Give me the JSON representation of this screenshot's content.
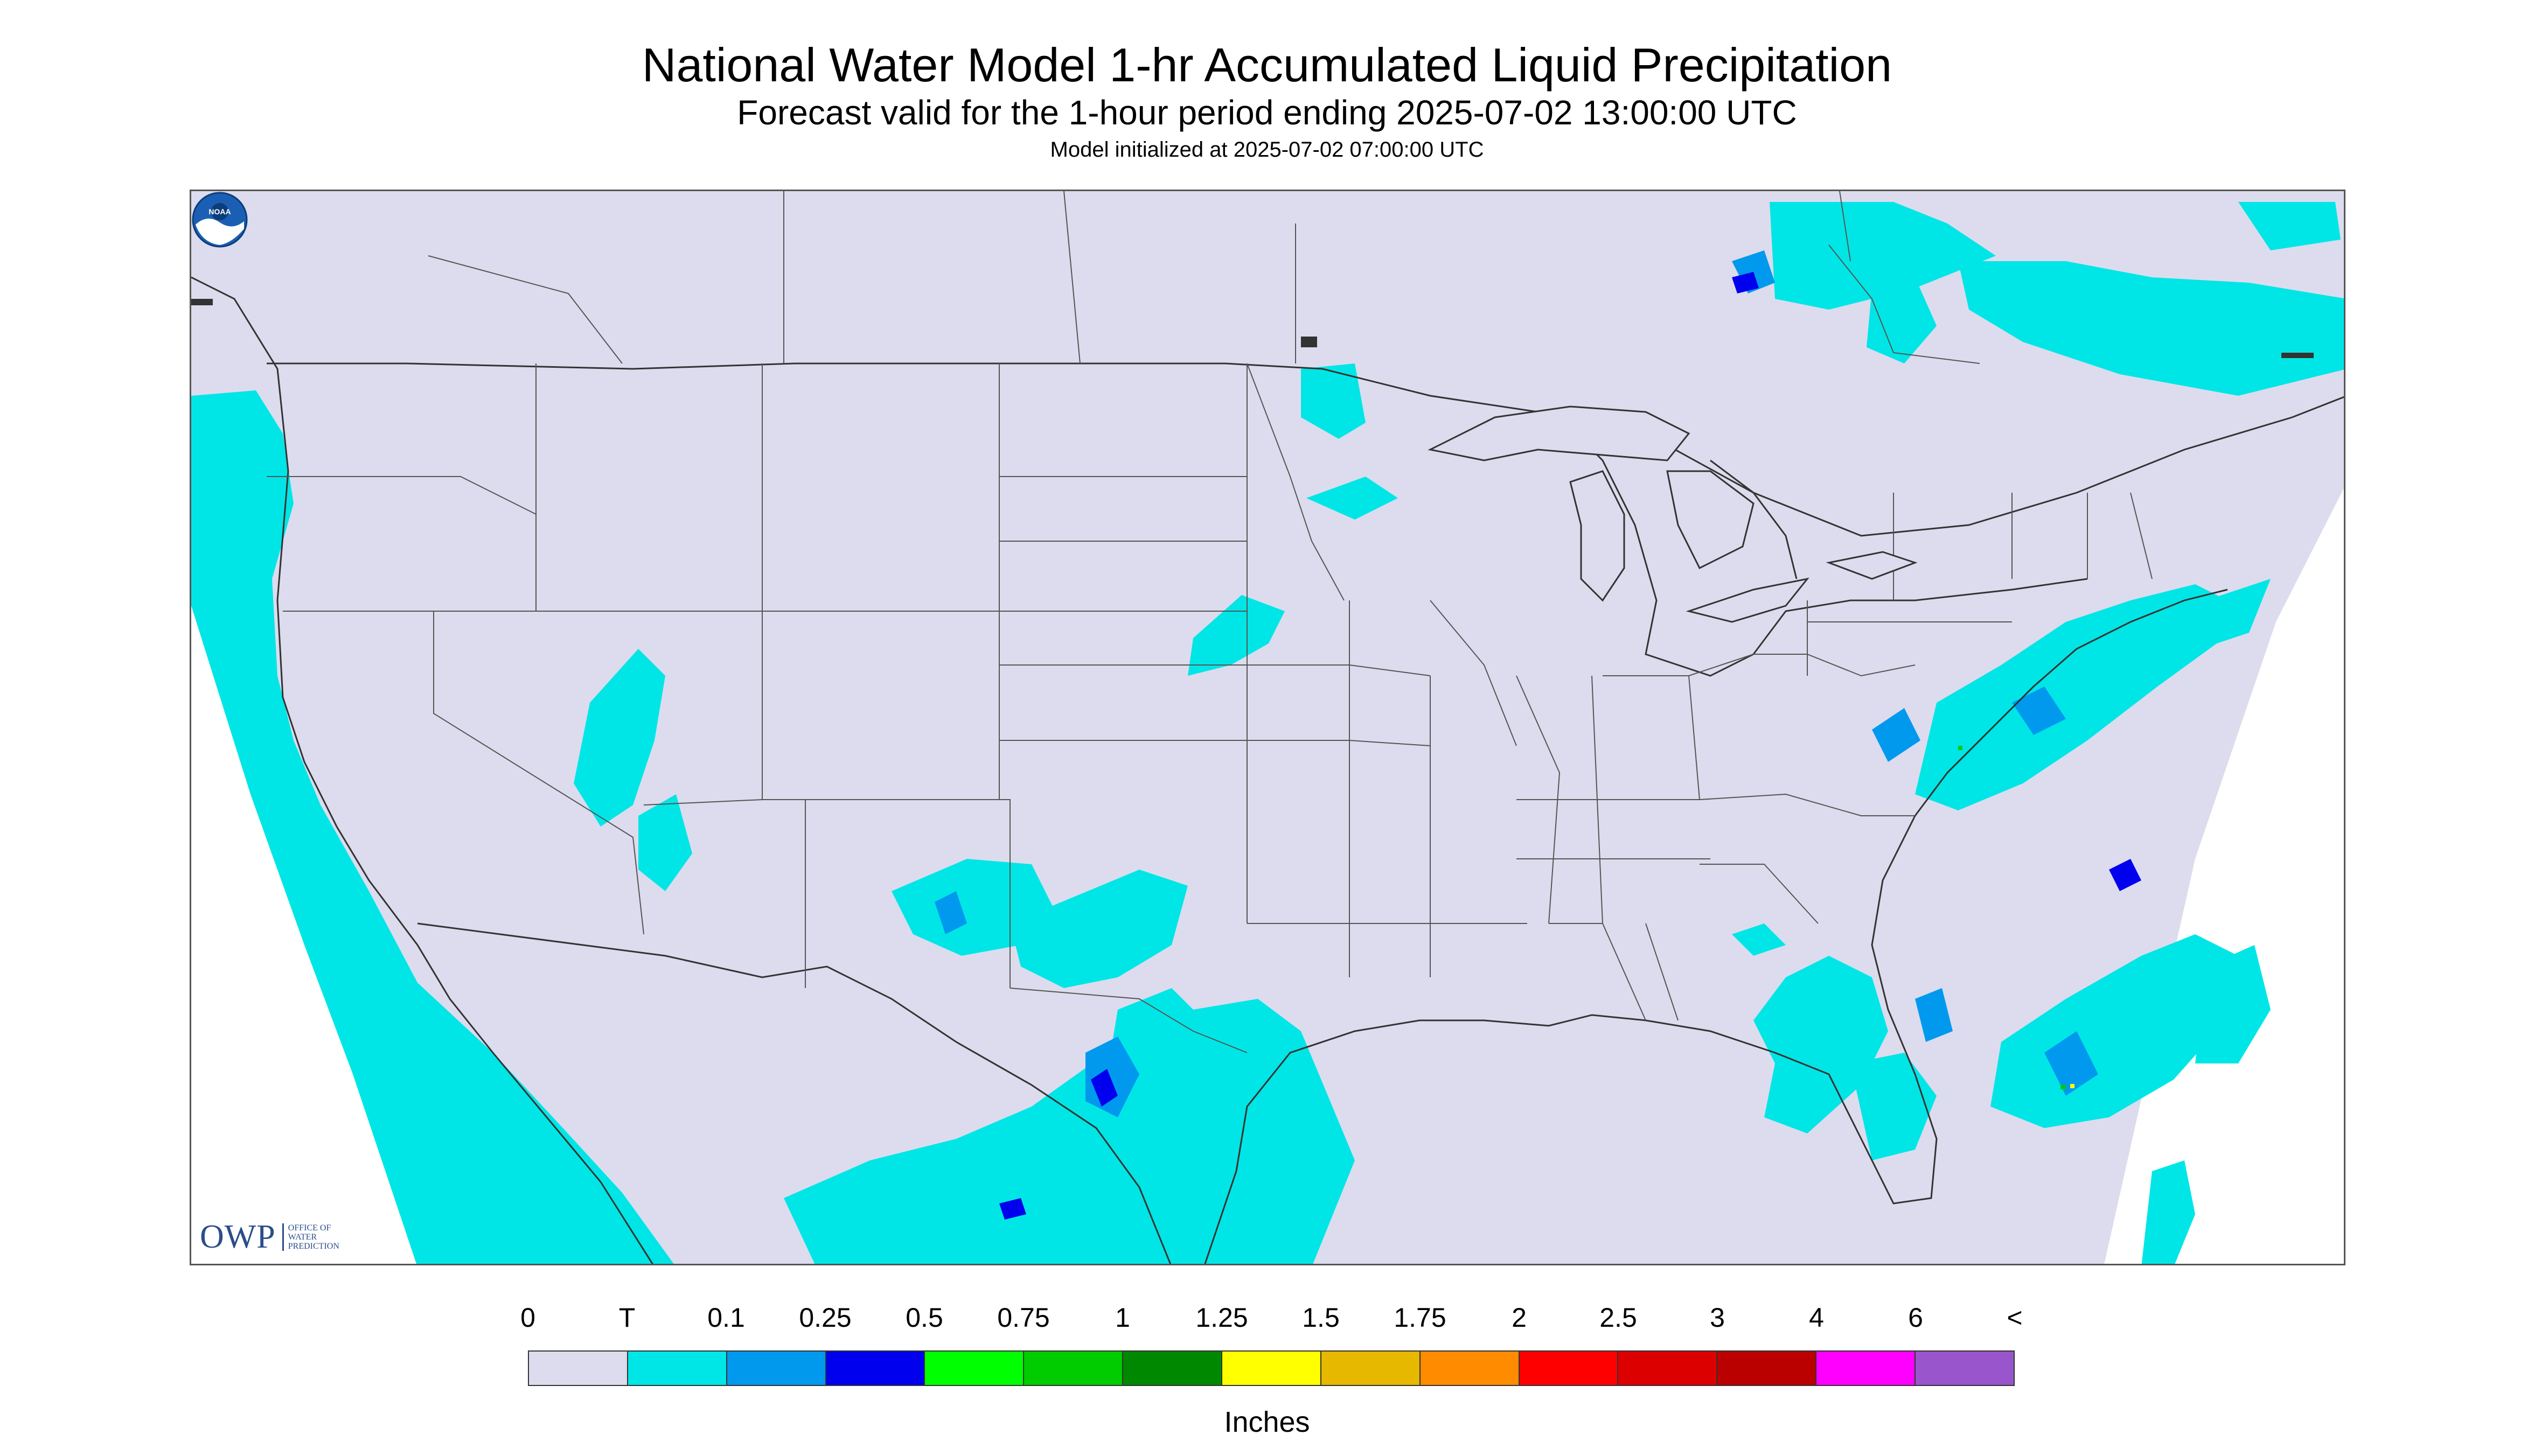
{
  "title": "National Water Model 1-hr Accumulated Liquid Precipitation",
  "subtitle": "Forecast valid for the 1-hour period ending 2025-07-02 13:00:00 UTC",
  "init_line": "Model initialized at 2025-07-02 07:00:00 UTC",
  "logos": {
    "owp_mark": "OWP",
    "owp_text": [
      "OFFICE OF",
      "WATER",
      "PREDICTION"
    ],
    "noaa_text": "NOAA"
  },
  "map": {
    "background_color": "#dcdcee",
    "precip_colors": {
      "trace": "#00e6e6",
      "light": "#0099ee",
      "moderate": "#0000ee",
      "heavy": "#00cc00",
      "very_heavy": "#ffff00"
    }
  },
  "legend": {
    "labels": [
      "0",
      "T",
      "0.1",
      "0.25",
      "0.5",
      "0.75",
      "1",
      "1.25",
      "1.5",
      "1.75",
      "2",
      "2.5",
      "3",
      "4",
      "6",
      "<"
    ],
    "colors": [
      "#dcdcee",
      "#00e6e6",
      "#0099ee",
      "#0000ee",
      "#00ff00",
      "#00cc00",
      "#008800",
      "#ffff00",
      "#e6b800",
      "#ff8c00",
      "#ff0000",
      "#dd0000",
      "#bb0000",
      "#ff00ff",
      "#9955cc"
    ],
    "units": "Inches"
  }
}
